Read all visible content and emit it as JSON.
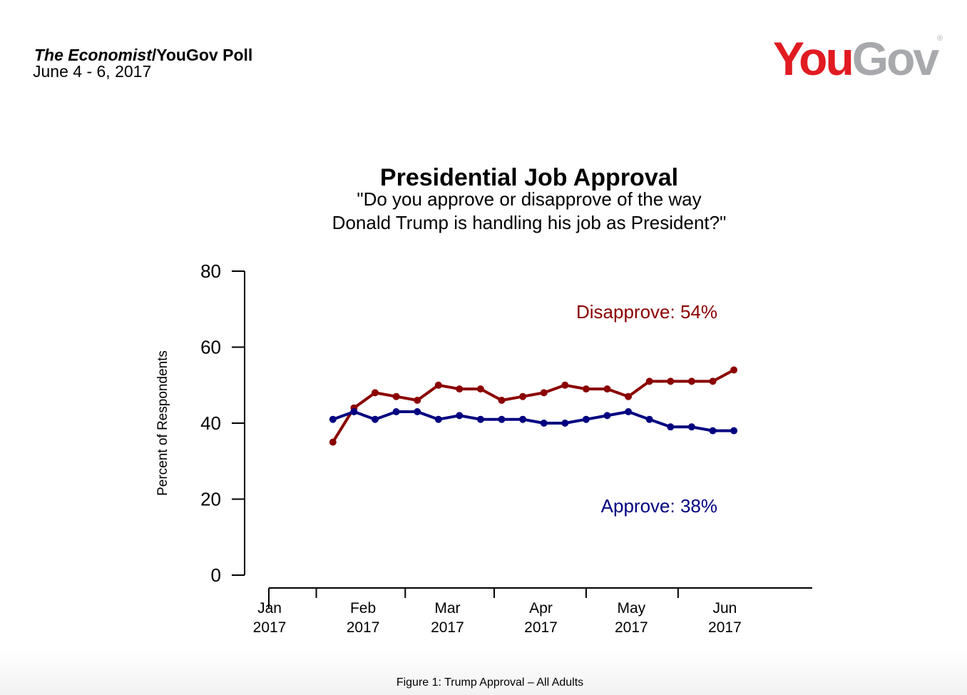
{
  "header": {
    "publication": "The Economist",
    "publication_rest": "/YouGov Poll",
    "dates": "June 4 - 6, 2017"
  },
  "logo": {
    "you": "You",
    "gov": "Gov",
    "mark": "®",
    "colors": {
      "you": "#e11b22",
      "gov": "#a7a9ac"
    }
  },
  "chart_data": {
    "type": "line",
    "title": "Presidential Job Approval",
    "subtitle_lines": [
      "\"Do you approve or disapprove of the way",
      "Donald Trump is handling his job as President?\""
    ],
    "ylabel": "Percent of Respondents",
    "xlabel": "",
    "ylim": [
      0,
      80
    ],
    "yticks": [
      0,
      20,
      40,
      60,
      80
    ],
    "x_range": [
      "2017-01-01",
      "2017-06-30"
    ],
    "x_ticks": [
      {
        "date": "2017-01-01",
        "label_month": "Jan",
        "label_year": "2017"
      },
      {
        "date": "2017-02-01",
        "label_month": "Feb",
        "label_year": "2017"
      },
      {
        "date": "2017-03-01",
        "label_month": "Mar",
        "label_year": "2017"
      },
      {
        "date": "2017-04-01",
        "label_month": "Apr",
        "label_year": "2017"
      },
      {
        "date": "2017-05-01",
        "label_month": "May",
        "label_year": "2017"
      },
      {
        "date": "2017-06-01",
        "label_month": "Jun",
        "label_year": "2017"
      }
    ],
    "x": [
      "2017-01-22",
      "2017-01-29",
      "2017-02-05",
      "2017-02-12",
      "2017-02-19",
      "2017-02-26",
      "2017-03-05",
      "2017-03-12",
      "2017-03-19",
      "2017-03-26",
      "2017-04-02",
      "2017-04-09",
      "2017-04-16",
      "2017-04-23",
      "2017-04-30",
      "2017-05-07",
      "2017-05-14",
      "2017-05-21",
      "2017-05-28",
      "2017-06-04"
    ],
    "series": [
      {
        "name": "Disapprove",
        "label": "Disapprove: 54%",
        "color": "#8b0000",
        "values": [
          35,
          44,
          48,
          47,
          46,
          50,
          49,
          49,
          46,
          47,
          48,
          50,
          49,
          49,
          47,
          51,
          51,
          51,
          51,
          54
        ]
      },
      {
        "name": "Approve",
        "label": "Approve: 38%",
        "color": "#000080",
        "values": [
          41,
          43,
          41,
          43,
          43,
          41,
          42,
          41,
          41,
          41,
          40,
          40,
          41,
          42,
          43,
          41,
          39,
          39,
          38,
          38
        ]
      }
    ],
    "grid": false,
    "legend": "none"
  },
  "caption": "Figure 1: Trump Approval – All Adults"
}
